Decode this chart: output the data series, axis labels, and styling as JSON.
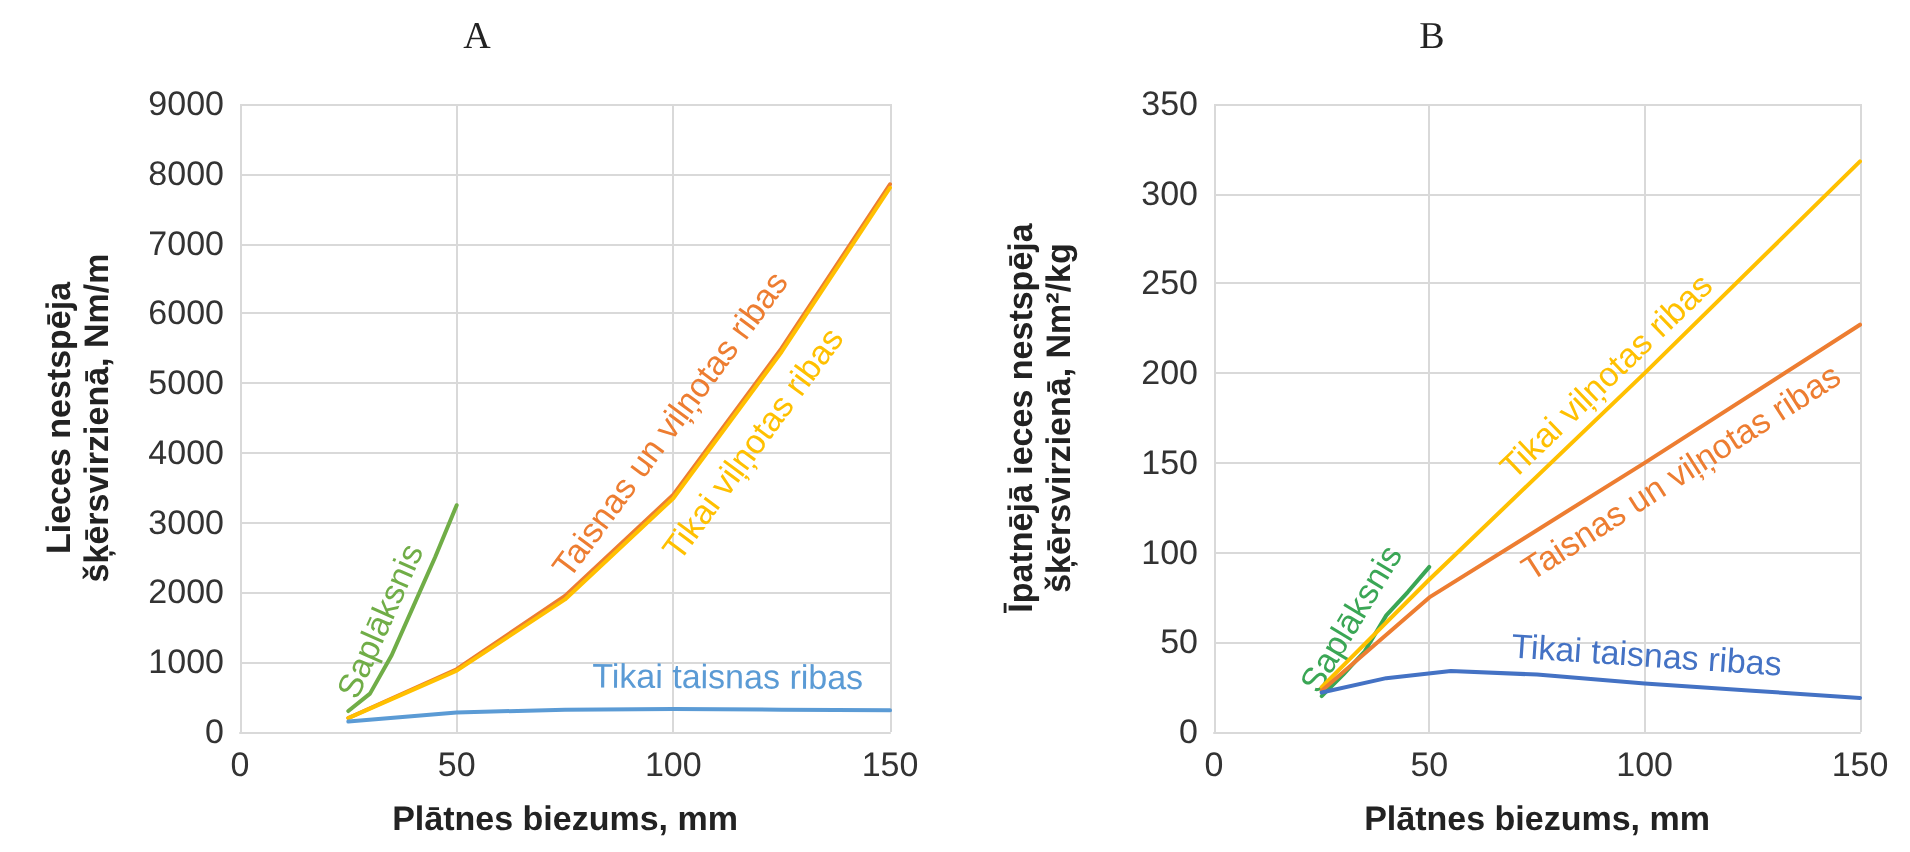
{
  "chart_data": [
    {
      "type": "line",
      "title": "A",
      "xlabel": "Plātnes biezums, mm",
      "ylabel": "Lieces nestspēja šķērsvirzienā, Nm/m",
      "xlim": [
        0,
        150
      ],
      "xticks": [
        0,
        50,
        100,
        150
      ],
      "ylim": [
        0,
        9000
      ],
      "yticks": [
        0,
        1000,
        2000,
        3000,
        4000,
        5000,
        6000,
        7000,
        8000,
        9000
      ],
      "grid": true,
      "marker": "none",
      "line_style": "solid",
      "series": [
        {
          "name": "Saplāksnis",
          "color": "#70ad47",
          "x": [
            25,
            30,
            35,
            40,
            45,
            50
          ],
          "values": [
            300,
            550,
            1100,
            1800,
            2500,
            3250
          ]
        },
        {
          "name": "Taisnas un viļņotas ribas",
          "color": "#ed7d31",
          "x": [
            25,
            50,
            75,
            100,
            125,
            150
          ],
          "values": [
            200,
            900,
            1950,
            3400,
            5500,
            7850
          ]
        },
        {
          "name": "Tikai viļņotas ribas",
          "color": "#ffc000",
          "x": [
            25,
            50,
            75,
            100,
            125,
            150
          ],
          "values": [
            200,
            880,
            1900,
            3350,
            5450,
            7800
          ]
        },
        {
          "name": "Tikai taisnas ribas",
          "color": "#5b9bd5",
          "x": [
            25,
            50,
            75,
            100,
            125,
            150
          ],
          "values": [
            150,
            280,
            320,
            330,
            320,
            310
          ]
        }
      ]
    },
    {
      "type": "line",
      "title": "B",
      "xlabel": "Plātnes biezums, mm",
      "ylabel": "Īpatnējā ieces nestspēja šķērsvirzienā, Nm²/kg",
      "xlim": [
        0,
        150
      ],
      "xticks": [
        0,
        50,
        100,
        150
      ],
      "ylim": [
        0,
        350
      ],
      "yticks": [
        0,
        50,
        100,
        150,
        200,
        250,
        300,
        350
      ],
      "grid": true,
      "marker": "none",
      "line_style": "solid",
      "series": [
        {
          "name": "Saplāksnis",
          "color": "#3aa655",
          "x": [
            25,
            30,
            35,
            40,
            45,
            50
          ],
          "values": [
            20,
            32,
            45,
            65,
            78,
            92
          ]
        },
        {
          "name": "Tikai viļņotas ribas",
          "color": "#ffc000",
          "x": [
            25,
            50,
            100,
            150
          ],
          "values": [
            25,
            85,
            200,
            318
          ]
        },
        {
          "name": "Taisnas un viļņotas ribas",
          "color": "#ed7d31",
          "x": [
            25,
            50,
            100,
            150
          ],
          "values": [
            23,
            75,
            150,
            227
          ]
        },
        {
          "name": "Tikai taisnas ribas",
          "color": "#4472c4",
          "x": [
            25,
            40,
            55,
            75,
            100,
            125,
            150
          ],
          "values": [
            22,
            30,
            34,
            32,
            27,
            23,
            19
          ]
        }
      ]
    }
  ]
}
